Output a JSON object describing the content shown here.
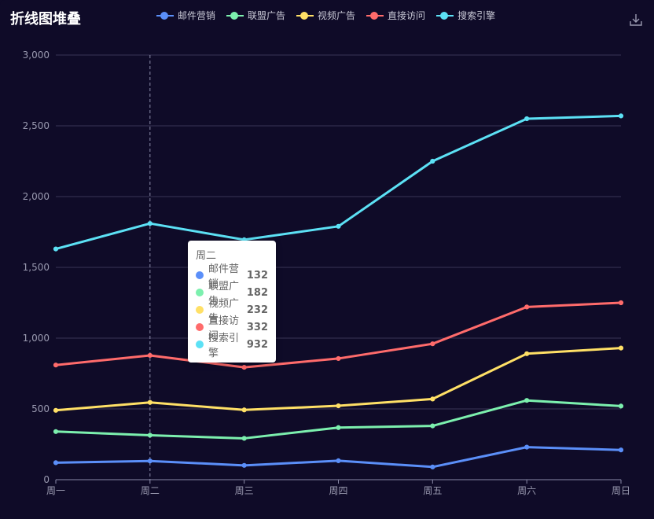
{
  "title": "折线图堆叠",
  "toolbox": {
    "download_icon": "download-icon"
  },
  "chart_data": {
    "type": "line",
    "stacked": true,
    "categories": [
      "周一",
      "周二",
      "周三",
      "周四",
      "周五",
      "周六",
      "周日"
    ],
    "series": [
      {
        "name": "邮件营销",
        "color": "#5b8ff9",
        "values": [
          120,
          132,
          101,
          134,
          90,
          230,
          210
        ]
      },
      {
        "name": "联盟广告",
        "color": "#7cf0ae",
        "values": [
          220,
          182,
          191,
          234,
          290,
          330,
          310
        ]
      },
      {
        "name": "视频广告",
        "color": "#ffe066",
        "values": [
          150,
          232,
          201,
          154,
          190,
          330,
          410
        ]
      },
      {
        "name": "直接访问",
        "color": "#ff6b6b",
        "values": [
          320,
          332,
          301,
          334,
          390,
          330,
          320
        ]
      },
      {
        "name": "搜索引擎",
        "color": "#5ce1f5",
        "values": [
          820,
          932,
          901,
          934,
          1290,
          1330,
          1320
        ]
      }
    ],
    "yticks": [
      "0",
      "500",
      "1,000",
      "1,500",
      "2,000",
      "2,500",
      "3,000"
    ],
    "ylim": [
      0,
      3000
    ],
    "legend": "top",
    "grid": true
  },
  "tooltip": {
    "title": "周二",
    "rows": [
      {
        "name": "邮件营销",
        "value": "132",
        "color": "#5b8ff9"
      },
      {
        "name": "联盟广告",
        "value": "182",
        "color": "#7cf0ae"
      },
      {
        "name": "视频广告",
        "value": "232",
        "color": "#ffe066"
      },
      {
        "name": "直接访问",
        "value": "332",
        "color": "#ff6b6b"
      },
      {
        "name": "搜索引擎",
        "value": "932",
        "color": "#5ce1f5"
      }
    ]
  }
}
